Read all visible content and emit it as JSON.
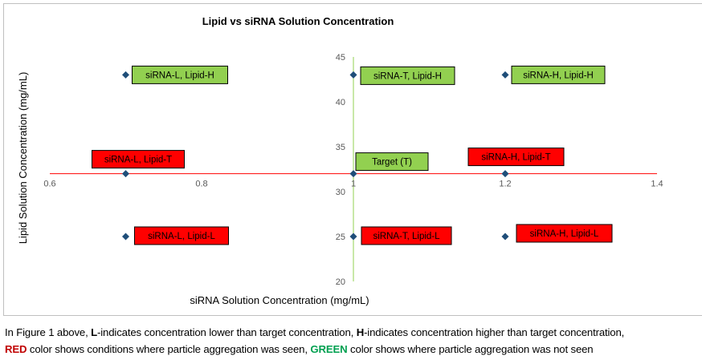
{
  "chart_data": {
    "type": "scatter",
    "title": "Lipid vs siRNA Solution Concentration",
    "xlabel": "siRNA Solution Concentration (mg/mL)",
    "ylabel": "Lipid Solution Concentration (mg/mL)",
    "xlim": [
      0.6,
      1.4
    ],
    "ylim": [
      20,
      45
    ],
    "x_ticks": [
      "0.6",
      "0.8",
      "1",
      "1.2",
      "1.4"
    ],
    "y_ticks": [
      "20",
      "25",
      "30",
      "35",
      "40",
      "45"
    ],
    "axis_cross": {
      "x": 1.0,
      "y": 32
    },
    "grid": false,
    "colors": {
      "marker": "#1f4e79",
      "x_axis_line": "#ff0000",
      "y_axis_line": "#92d050",
      "label_green": "#92d050",
      "label_red": "#ff0000"
    },
    "points": [
      {
        "x": 0.7,
        "y": 43,
        "label": "siRNA-L, Lipid-H",
        "status": "green"
      },
      {
        "x": 1.0,
        "y": 43,
        "label": "siRNA-T, Lipid-H",
        "status": "green"
      },
      {
        "x": 1.2,
        "y": 43,
        "label": "siRNA-H, Lipid-H",
        "status": "green"
      },
      {
        "x": 0.7,
        "y": 32,
        "label": "siRNA-L, Lipid-T",
        "status": "red"
      },
      {
        "x": 1.0,
        "y": 32,
        "label": "Target (T)",
        "status": "green"
      },
      {
        "x": 1.2,
        "y": 32,
        "label": "siRNA-H, Lipid-T",
        "status": "red"
      },
      {
        "x": 0.7,
        "y": 25,
        "label": "siRNA-L, Lipid-L",
        "status": "red"
      },
      {
        "x": 1.0,
        "y": 25,
        "label": "siRNA-T, Lipid-L",
        "status": "red"
      },
      {
        "x": 1.2,
        "y": 25,
        "label": "siRNA-H, Lipid-L",
        "status": "red"
      }
    ]
  },
  "caption": {
    "line1_a": "In Figure 1 above, ",
    "line1_b": "L",
    "line1_c": "-indicates concentration lower than target concentration, ",
    "line1_d": "H",
    "line1_e": "-indicates concentration higher than target concentration,",
    "line2_a": "RED",
    "line2_b": " color shows conditions where particle aggregation was seen, ",
    "line2_c": "GREEN",
    "line2_d": " color shows where particle aggregation was not seen"
  }
}
